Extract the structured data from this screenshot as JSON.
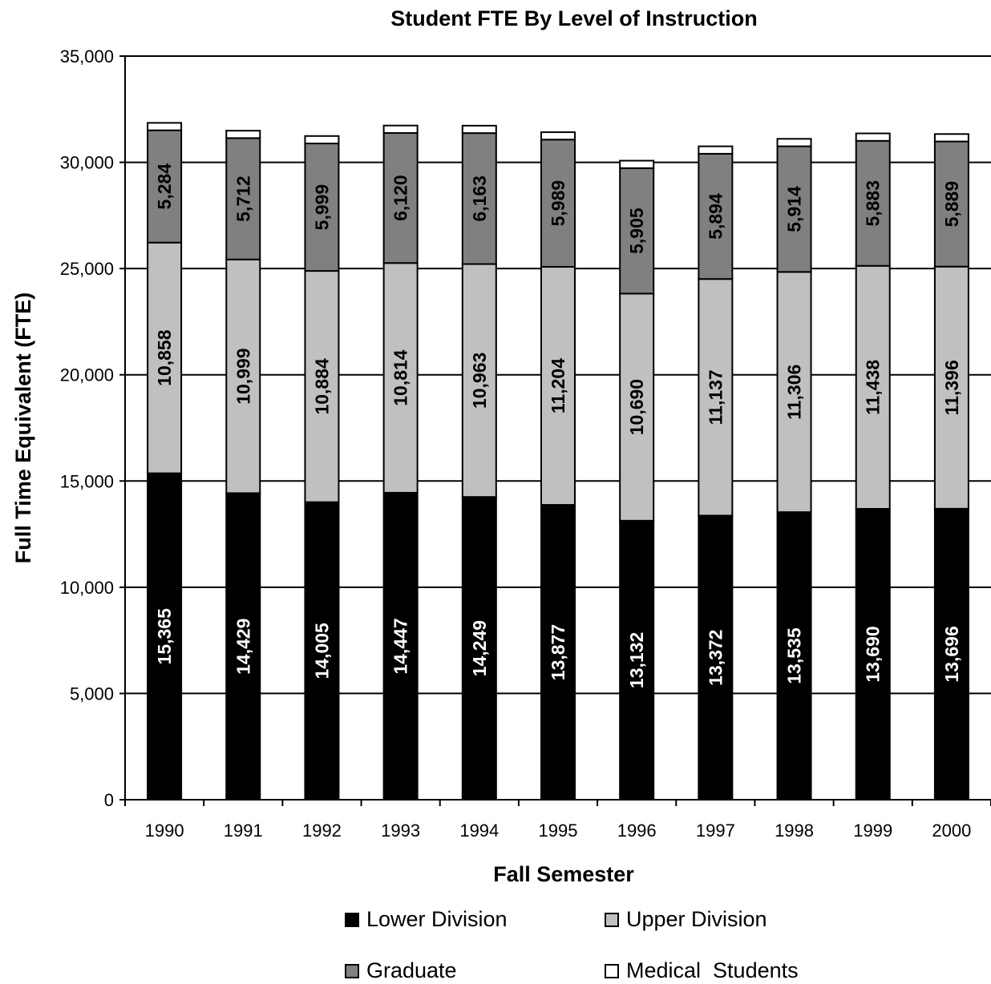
{
  "chart_data": {
    "type": "bar",
    "stacked": true,
    "title": "Student FTE By Level of Instruction",
    "xlabel": "Fall Semester",
    "ylabel": "Full Time Equivalent (FTE)",
    "ylim": [
      0,
      35000
    ],
    "y_ticks": [
      "0",
      "5,000",
      "10,000",
      "15,000",
      "20,000",
      "25,000",
      "30,000",
      "35,000"
    ],
    "grid": true,
    "legend_position": "bottom",
    "categories": [
      "1990",
      "1991",
      "1992",
      "1993",
      "1994",
      "1995",
      "1996",
      "1997",
      "1998",
      "1999",
      "2000"
    ],
    "series": [
      {
        "name": "Lower Division",
        "color": "#000000",
        "label_color": "#ffffff",
        "values": [
          15365,
          14429,
          14005,
          14447,
          14249,
          13877,
          13132,
          13372,
          13535,
          13690,
          13696
        ],
        "labels": [
          "15,365",
          "14,429",
          "14,005",
          "14,447",
          "14,249",
          "13,877",
          "13,132",
          "13,372",
          "13,535",
          "13,690",
          "13,696"
        ]
      },
      {
        "name": "Upper Division",
        "color": "#c0c0c0",
        "label_color": "#000000",
        "values": [
          10858,
          10999,
          10884,
          10814,
          10963,
          11204,
          10690,
          11137,
          11306,
          11438,
          11396
        ],
        "labels": [
          "10,858",
          "10,999",
          "10,884",
          "10,814",
          "10,963",
          "11,204",
          "10,690",
          "11,137",
          "11,306",
          "11,438",
          "11,396"
        ]
      },
      {
        "name": "Graduate",
        "color": "#808080",
        "label_color": "#000000",
        "values": [
          5284,
          5712,
          5999,
          6120,
          6163,
          5989,
          5905,
          5894,
          5914,
          5883,
          5889
        ],
        "labels": [
          "5,284",
          "5,712",
          "5,999",
          "6,120",
          "6,163",
          "5,989",
          "5,905",
          "5,894",
          "5,914",
          "5,883",
          "5,889"
        ]
      },
      {
        "name": "Medical  Students",
        "color": "#ffffff",
        "label_color": "#000000",
        "values": [
          350,
          350,
          350,
          350,
          350,
          350,
          350,
          350,
          350,
          350,
          350
        ],
        "labels": []
      }
    ]
  }
}
